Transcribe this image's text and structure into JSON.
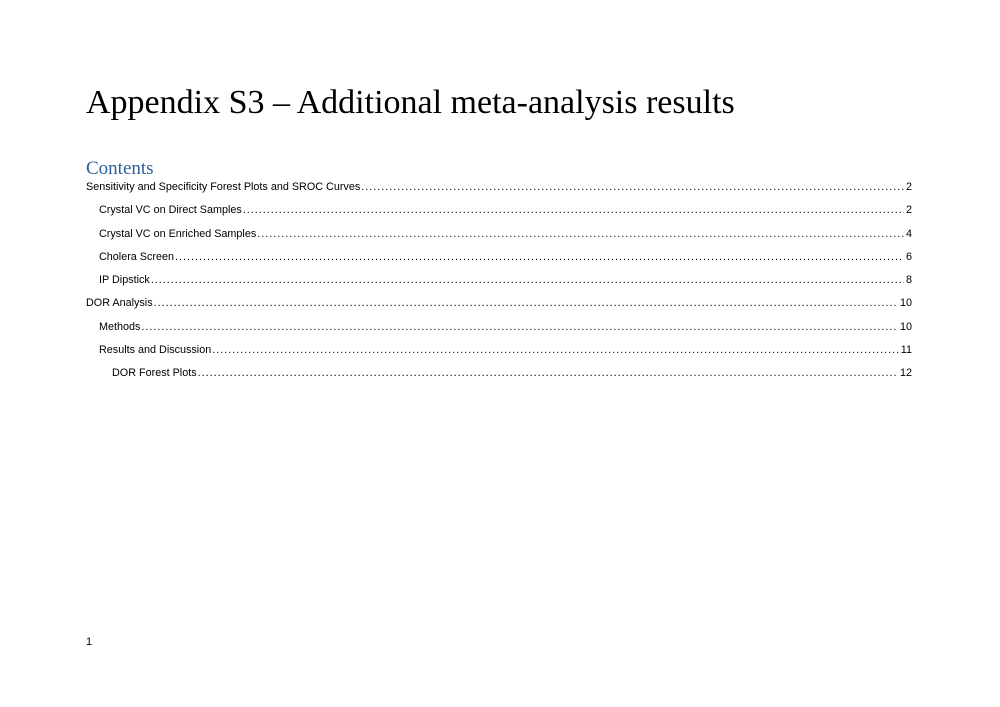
{
  "document": {
    "title": "Appendix S3 – Additional meta-analysis results",
    "contents_heading": "Contents",
    "toc": [
      {
        "label": "Sensitivity and Specificity Forest Plots and SROC Curves",
        "page": "2",
        "level": 1
      },
      {
        "label": "Crystal VC on Direct Samples",
        "page": "2",
        "level": 2
      },
      {
        "label": "Crystal VC on Enriched Samples",
        "page": "4",
        "level": 2
      },
      {
        "label": "Cholera Screen",
        "page": "6",
        "level": 2
      },
      {
        "label": "IP Dipstick",
        "page": "8",
        "level": 2
      },
      {
        "label": "DOR Analysis",
        "page": "10",
        "level": 1
      },
      {
        "label": "Methods",
        "page": "10",
        "level": 2
      },
      {
        "label": "Results and Discussion",
        "page": "11",
        "level": 2
      },
      {
        "label": "DOR Forest Plots",
        "page": "12",
        "level": 3
      }
    ],
    "page_number": "1",
    "heading_color": "#2e5e9a"
  }
}
